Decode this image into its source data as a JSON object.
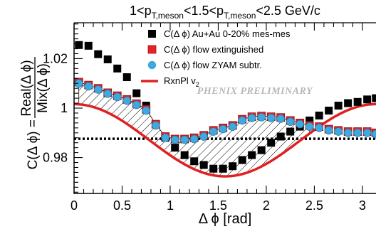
{
  "chart_data": {
    "type": "scatter",
    "title": "1<p_T,meson<1.5<p_T,meson<2.5 GeV/c",
    "title_parts": {
      "p1": "1<p",
      "s1": "T,meson",
      "p2": "<1.5<p",
      "s2": "T,meson",
      "p3": "<2.5 GeV/c"
    },
    "xlabel": "Δ ϕ [rad]",
    "ylabel": {
      "prefix": "C(Δ ϕ) = ",
      "numerator": "Real(Δ ϕ)",
      "denominator": "Mix(Δ ϕ)"
    },
    "xlim": [
      0,
      3.14159
    ],
    "ylim": [
      0.9655,
      1.0345
    ],
    "xticks": [
      {
        "value": 0,
        "label": "0"
      },
      {
        "value": 0.5,
        "label": "0.5"
      },
      {
        "value": 1,
        "label": "1"
      },
      {
        "value": 1.5,
        "label": "1.5"
      },
      {
        "value": 2,
        "label": "2"
      },
      {
        "value": 2.5,
        "label": "2.5"
      },
      {
        "value": 3,
        "label": "3"
      }
    ],
    "yticks": [
      {
        "value": 0.98,
        "label": "0.98"
      },
      {
        "value": 1.0,
        "label": "1"
      },
      {
        "value": 1.02,
        "label": "1.02"
      }
    ],
    "zyam_level": 0.9876,
    "watermark": "PHENIX PRELIMINARY",
    "legend_position": "top-right",
    "colors": {
      "raw": "#000000",
      "flow_extinguished": "#e8202a",
      "zyam": "#3fa9de",
      "flow_line": "#e02020",
      "band": "#000000"
    },
    "series": [
      {
        "name": "C(Δ ϕ) Au+Au 0-20% mes-mes",
        "marker": "square-black",
        "x": [
          0.05,
          0.15,
          0.25,
          0.35,
          0.45,
          0.55,
          0.65,
          0.75,
          0.85,
          0.95,
          1.05,
          1.15,
          1.25,
          1.35,
          1.45,
          1.55,
          1.65,
          1.75,
          1.85,
          1.95,
          2.05,
          2.15,
          2.25,
          2.35,
          2.45,
          2.55,
          2.65,
          2.75,
          2.85,
          2.95,
          3.05,
          3.14
        ],
        "y": [
          1.0255,
          1.0252,
          1.0218,
          1.0197,
          1.016,
          1.0125,
          1.006,
          1.001,
          0.9935,
          0.988,
          0.984,
          0.981,
          0.9785,
          0.977,
          0.9755,
          0.9755,
          0.9765,
          0.979,
          0.981,
          0.983,
          0.986,
          0.9885,
          0.9905,
          0.9925,
          0.995,
          0.997,
          0.999,
          1.001,
          1.002,
          1.0025,
          1.0035,
          1.004
        ]
      },
      {
        "name": "C(Δ ϕ) flow extinguished",
        "marker": "square-red",
        "x": [
          0.05,
          0.15,
          0.25,
          0.35,
          0.45,
          0.55,
          0.65,
          0.75,
          0.85,
          0.95,
          1.05,
          1.15,
          1.25,
          1.35,
          1.45,
          1.55,
          1.65,
          1.75,
          1.85,
          1.95,
          2.05,
          2.15,
          2.25,
          2.35,
          2.45,
          2.55,
          2.65,
          2.75,
          2.85,
          2.95,
          3.05,
          3.14
        ],
        "y": [
          1.0105,
          1.0093,
          1.008,
          1.0062,
          1.005,
          1.0035,
          1.0018,
          0.9995,
          0.9935,
          0.9885,
          0.9875,
          0.9875,
          0.988,
          0.989,
          0.991,
          0.992,
          0.993,
          0.9955,
          0.9965,
          0.9968,
          0.9965,
          0.9962,
          0.995,
          0.994,
          0.993,
          0.9925,
          0.9915,
          0.991,
          0.9905,
          0.9905,
          0.9905,
          0.99
        ]
      },
      {
        "name": "C(Δ ϕ) flow ZYAM subtr.",
        "marker": "circle-blue",
        "x": [
          0.05,
          0.15,
          0.25,
          0.35,
          0.45,
          0.55,
          0.65,
          0.75,
          0.85,
          0.95,
          1.05,
          1.15,
          1.25,
          1.35,
          1.45,
          1.55,
          1.65,
          1.75,
          1.85,
          1.95,
          2.05,
          2.15,
          2.25,
          2.35,
          2.45,
          2.55,
          2.65,
          2.75,
          2.85,
          2.95,
          3.05,
          3.14
        ],
        "y": [
          1.01,
          1.0088,
          1.0075,
          1.0058,
          1.0045,
          1.003,
          1.0013,
          0.999,
          0.993,
          0.988,
          0.9872,
          0.9872,
          0.9875,
          0.9885,
          0.9905,
          0.9915,
          0.9925,
          0.995,
          0.996,
          0.9963,
          0.996,
          0.9957,
          0.9945,
          0.9935,
          0.9925,
          0.992,
          0.991,
          0.9905,
          0.99,
          0.99,
          0.99,
          0.9895
        ]
      },
      {
        "name": "RxnPl v_2",
        "name_parts": {
          "base": "RxnPl v",
          "sub": "2"
        },
        "marker": "line-red",
        "mean": 0.987,
        "amplitude": 0.0146
      }
    ]
  }
}
